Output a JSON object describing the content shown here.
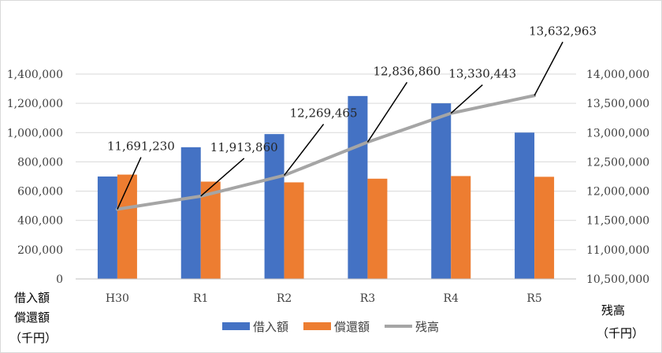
{
  "chart_data": {
    "type": "bar",
    "title": "",
    "categories": [
      "H30",
      "R1",
      "R2",
      "R3",
      "R4",
      "R5"
    ],
    "series": [
      {
        "name": "借入額",
        "type": "bar",
        "axis": "left",
        "color": "#4472c4",
        "values": [
          700000,
          900000,
          990000,
          1250000,
          1200000,
          1000000
        ]
      },
      {
        "name": "償還額",
        "type": "bar",
        "axis": "left",
        "color": "#ed7d31",
        "values": [
          713000,
          665000,
          660000,
          685000,
          703000,
          698000
        ]
      },
      {
        "name": "残高",
        "type": "line",
        "axis": "right",
        "color": "#a5a5a5",
        "values": [
          11691230,
          11913860,
          12269465,
          12836860,
          13330443,
          13632963
        ],
        "data_labels": [
          "11,691,230",
          "11,913,860",
          "12,269,465",
          "12,836,860",
          "13,330,443",
          "13,632,963"
        ]
      }
    ],
    "y_left": {
      "label_lines": [
        "借入額",
        "償還額",
        "（千円）"
      ],
      "min": 0,
      "max": 1400000,
      "step": 200000,
      "tick_labels": [
        "0",
        "200,000",
        "400,000",
        "600,000",
        "800,000",
        "1,000,000",
        "1,200,000",
        "1,400,000"
      ]
    },
    "y_right": {
      "label_lines": [
        "残高",
        "（千円）"
      ],
      "min": 10500000,
      "max": 14000000,
      "step": 500000,
      "tick_labels": [
        "10,500,000",
        "11,000,000",
        "11,500,000",
        "12,000,000",
        "12,500,000",
        "13,000,000",
        "13,500,000",
        "14,000,000"
      ]
    },
    "grid": true,
    "legend": {
      "position": "bottom",
      "entries": [
        "借入額",
        "償還額",
        "残高"
      ]
    }
  }
}
